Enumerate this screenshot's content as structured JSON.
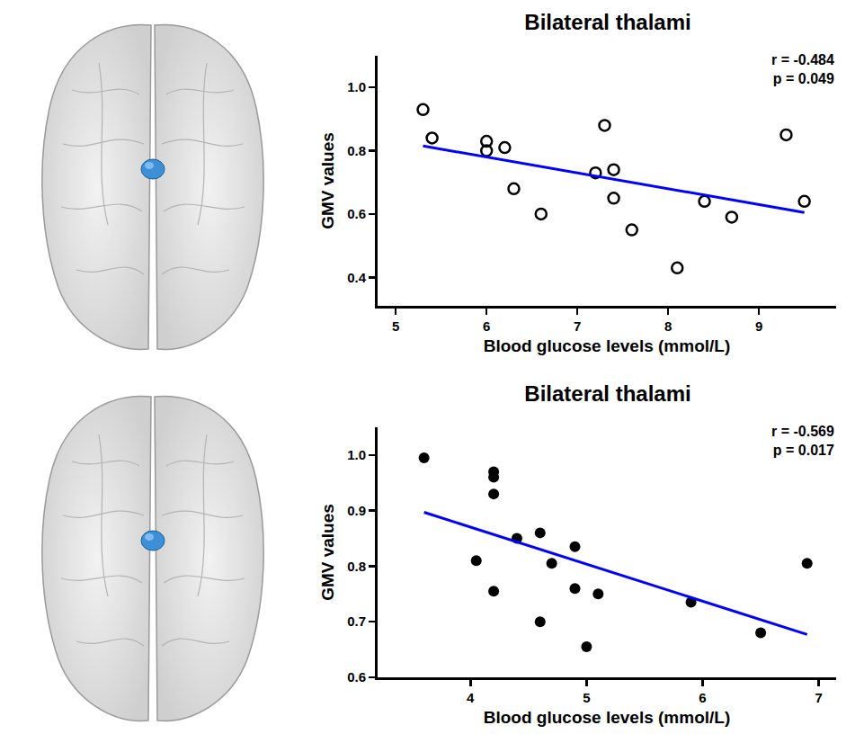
{
  "chart_data": [
    {
      "type": "scatter",
      "title": "Bilateral thalami",
      "x_label": "Blood glucose levels (mmol/L)",
      "y_label": "GMV values",
      "xlim": [
        4.8,
        9.85
      ],
      "xticks": [
        5,
        6,
        7,
        8,
        9
      ],
      "ylim": [
        0.31,
        1.1
      ],
      "yticks": [
        0.4,
        0.6,
        0.8,
        {
          "value": 1.0,
          "label": "1.0"
        }
      ],
      "grid": false,
      "annotations": [
        "r = -0.484",
        "p = 0.049"
      ],
      "series": [
        {
          "type": "scatter",
          "marker": "open circle",
          "color": "#000000",
          "x": [
            5.3,
            5.4,
            6.0,
            6.0,
            6.2,
            6.3,
            6.6,
            7.2,
            7.3,
            7.4,
            7.4,
            7.6,
            8.1,
            8.4,
            8.7,
            9.3,
            9.5
          ],
          "values": [
            0.93,
            0.84,
            0.83,
            0.8,
            0.81,
            0.68,
            0.6,
            0.73,
            0.88,
            0.74,
            0.65,
            0.55,
            0.43,
            0.64,
            0.59,
            0.85,
            0.64
          ]
        },
        {
          "type": "line",
          "line_style": "solid",
          "color": "#0000ff",
          "x": [
            5.3,
            9.5
          ],
          "values": [
            0.815,
            0.605
          ]
        }
      ]
    },
    {
      "type": "scatter",
      "title": "Bilateral thalami",
      "x_label": "Blood glucose levels (mmol/L)",
      "y_label": "GMV values",
      "xlim": [
        3.2,
        7.15
      ],
      "xticks": [
        4,
        5,
        6,
        7
      ],
      "ylim": [
        0.6,
        1.05
      ],
      "yticks": [
        0.6,
        0.7,
        0.8,
        0.9,
        {
          "value": 1.0,
          "label": "1.0"
        }
      ],
      "grid": false,
      "annotations": [
        "r = -0.569",
        "p = 0.017"
      ],
      "series": [
        {
          "type": "scatter",
          "marker": "filled circle",
          "color": "#000000",
          "x": [
            3.6,
            4.05,
            4.2,
            4.2,
            4.2,
            4.2,
            4.4,
            4.6,
            4.6,
            4.7,
            4.9,
            4.9,
            5.0,
            5.1,
            5.9,
            6.5,
            6.9
          ],
          "values": [
            0.995,
            0.81,
            0.97,
            0.96,
            0.93,
            0.755,
            0.85,
            0.86,
            0.7,
            0.805,
            0.835,
            0.76,
            0.655,
            0.75,
            0.735,
            0.68,
            0.805
          ]
        },
        {
          "type": "line",
          "line_style": "solid",
          "color": "#0000ff",
          "x": [
            3.6,
            6.9
          ],
          "values": [
            0.897,
            0.677
          ]
        }
      ]
    }
  ]
}
